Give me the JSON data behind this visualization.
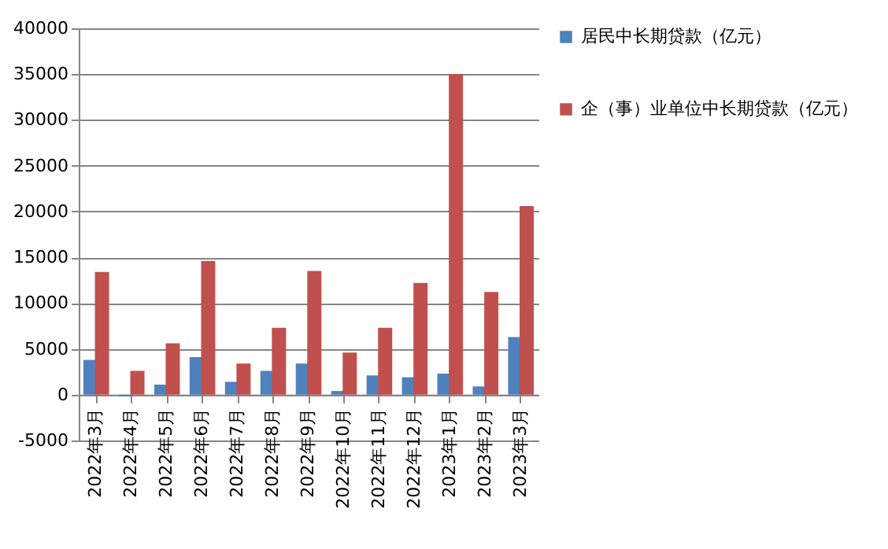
{
  "chart_data": {
    "type": "bar",
    "categories": [
      "2022年3月",
      "2022年4月",
      "2022年5月",
      "2022年6月",
      "2022年7月",
      "2022年8月",
      "2022年9月",
      "2022年10月",
      "2022年11月",
      "2022年12月",
      "2023年1月",
      "2023年2月",
      "2023年3月"
    ],
    "series": [
      {
        "name": "居民中长期贷款（亿元）",
        "color": "#4f81bd",
        "values": [
          3800,
          -200,
          1100,
          4100,
          1400,
          2600,
          3400,
          400,
          2100,
          1900,
          2300,
          900,
          6300
        ]
      },
      {
        "name": "企（事）业单位中长期贷款（亿元）",
        "color": "#c0504d",
        "values": [
          13400,
          2600,
          5600,
          14600,
          3400,
          7300,
          13500,
          4600,
          7300,
          12200,
          35000,
          11200,
          20600
        ]
      }
    ],
    "ylim": [
      -5000,
      40000
    ],
    "yticks": [
      -5000,
      0,
      5000,
      10000,
      15000,
      20000,
      25000,
      30000,
      35000,
      40000
    ],
    "grid": "y",
    "legend": "right"
  }
}
